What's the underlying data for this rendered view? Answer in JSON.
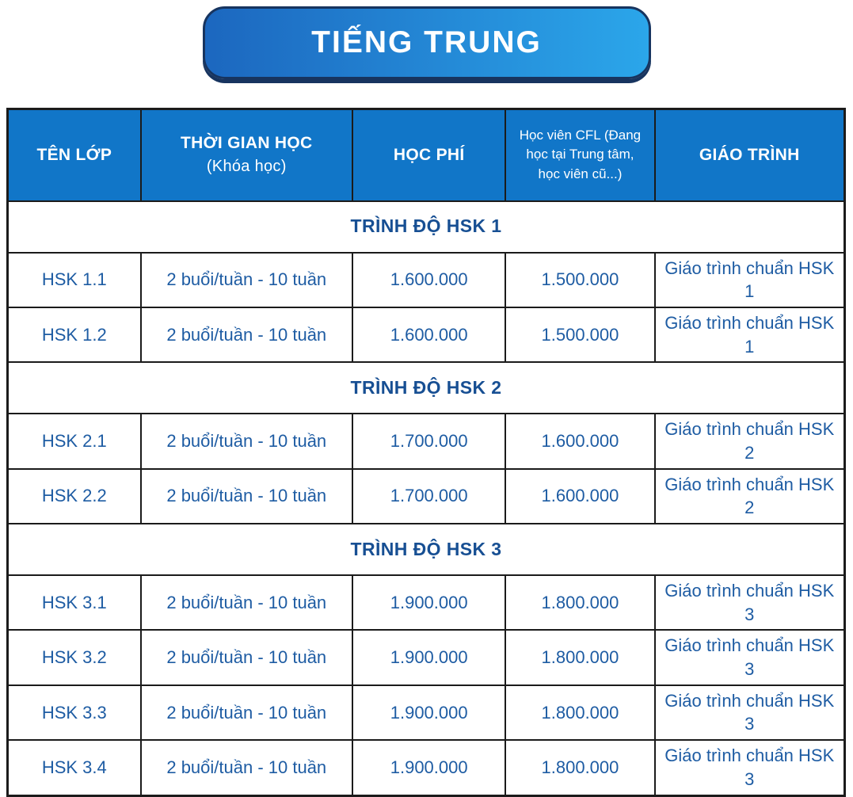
{
  "title": "TIẾNG TRUNG",
  "colors": {
    "header_bg": "#1176c8",
    "header_text": "#ffffff",
    "body_text": "#1e5ca3",
    "section_text": "#174f93",
    "table_border": "#1b1b1b",
    "banner_gradient_left": "#1c67bf",
    "banner_gradient_right": "#2ba6ea",
    "banner_border": "#17345f"
  },
  "chart_data": {
    "type": "table",
    "title": "TIẾNG TRUNG",
    "columns": [
      {
        "label": "TÊN LỚP",
        "sublabel": ""
      },
      {
        "label": "THỜI GIAN HỌC",
        "sublabel": "(Khóa học)"
      },
      {
        "label": "HỌC PHÍ",
        "sublabel": ""
      },
      {
        "label": "Học viên CFL (Đang học tại Trung tâm, học viên cũ...)",
        "sublabel": ""
      },
      {
        "label": "GIÁO TRÌNH",
        "sublabel": ""
      }
    ],
    "sections": [
      {
        "header": "TRÌNH ĐỘ HSK 1",
        "rows": [
          [
            "HSK 1.1",
            "2 buổi/tuần - 10 tuần",
            "1.600.000",
            "1.500.000",
            "Giáo trình chuẩn HSK 1"
          ],
          [
            "HSK 1.2",
            "2 buổi/tuần - 10 tuần",
            "1.600.000",
            "1.500.000",
            "Giáo trình chuẩn HSK 1"
          ]
        ]
      },
      {
        "header": "TRÌNH ĐỘ HSK 2",
        "rows": [
          [
            "HSK 2.1",
            "2 buổi/tuần - 10 tuần",
            "1.700.000",
            "1.600.000",
            "Giáo trình chuẩn HSK 2"
          ],
          [
            "HSK 2.2",
            "2 buổi/tuần - 10 tuần",
            "1.700.000",
            "1.600.000",
            "Giáo trình chuẩn HSK 2"
          ]
        ]
      },
      {
        "header": "TRÌNH ĐỘ HSK 3",
        "rows": [
          [
            "HSK 3.1",
            "2 buổi/tuần - 10 tuần",
            "1.900.000",
            "1.800.000",
            "Giáo trình chuẩn HSK 3"
          ],
          [
            "HSK 3.2",
            "2 buổi/tuần - 10 tuần",
            "1.900.000",
            "1.800.000",
            "Giáo trình chuẩn HSK 3"
          ],
          [
            "HSK 3.3",
            "2 buổi/tuần - 10 tuần",
            "1.900.000",
            "1.800.000",
            "Giáo trình chuẩn HSK 3"
          ],
          [
            "HSK 3.4",
            "2 buổi/tuần - 10 tuần",
            "1.900.000",
            "1.800.000",
            "Giáo trình chuẩn HSK 3"
          ]
        ]
      }
    ]
  }
}
